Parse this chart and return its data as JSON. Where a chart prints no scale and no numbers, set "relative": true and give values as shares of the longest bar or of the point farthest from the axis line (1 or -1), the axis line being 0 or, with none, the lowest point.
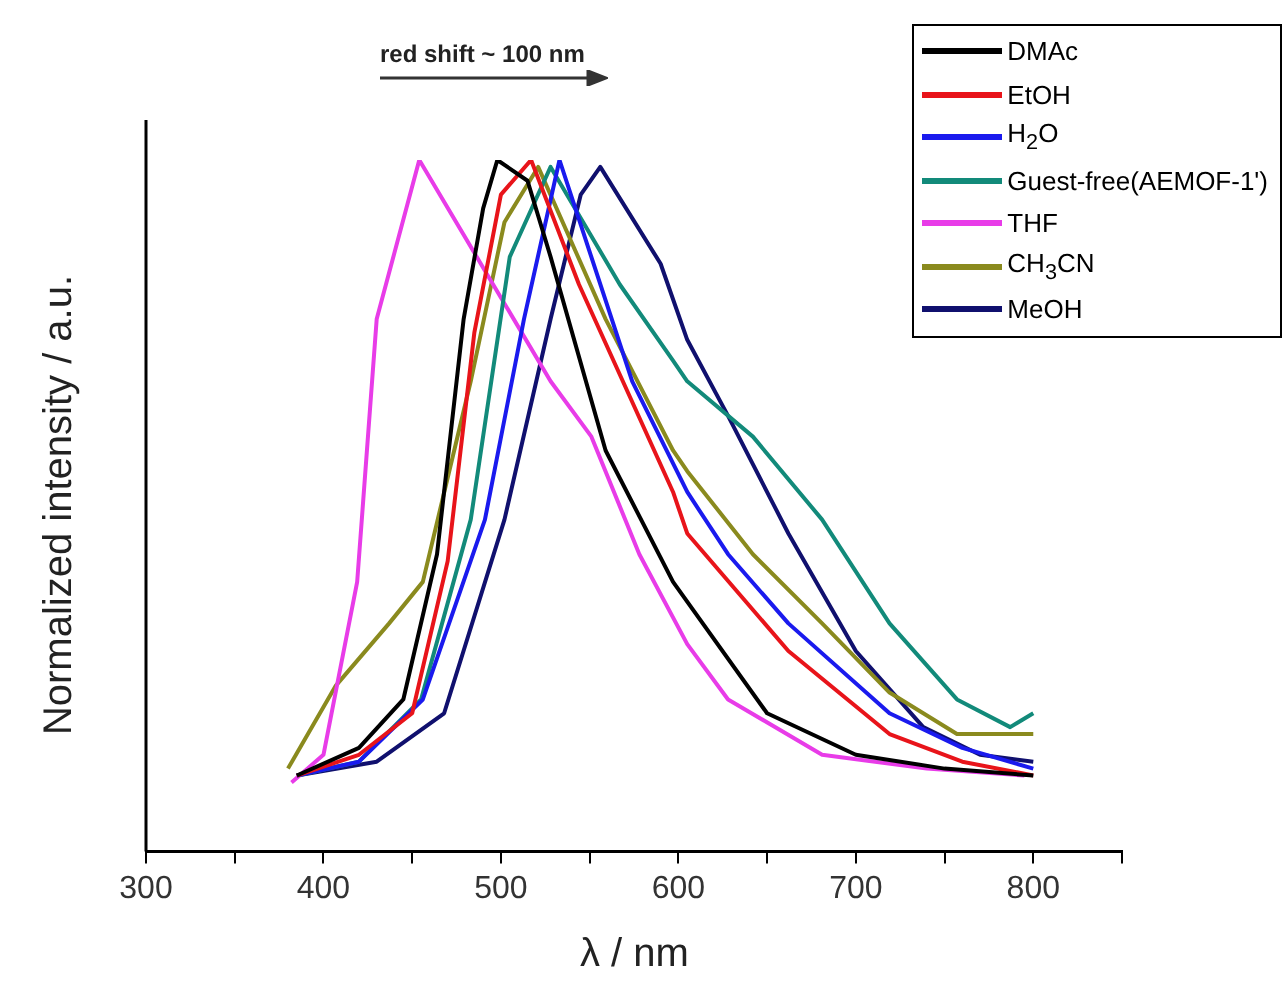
{
  "chart_data": {
    "type": "line",
    "xlabel": "λ / nm",
    "ylabel": "Normalized intensity / a.u.",
    "relative": true,
    "xlim": [
      300,
      850
    ],
    "xticks": [
      300,
      {
        "value": 350,
        "label": null
      },
      400,
      {
        "value": 450,
        "label": null
      },
      500,
      {
        "value": 550,
        "label": null
      },
      600,
      {
        "value": 650,
        "label": null
      },
      700,
      {
        "value": 750,
        "label": null
      },
      800,
      {
        "value": 850,
        "label": null
      }
    ],
    "grid": false,
    "legend": "top right",
    "marker": "none",
    "line_style": "solid",
    "annotations": [
      "red shift ~ 100 nm"
    ],
    "series": [
      {
        "name": "DMAc",
        "color": "#000000",
        "x": [
          385,
          420,
          445,
          464,
          479,
          490,
          498,
          515,
          528,
          559,
          597,
          650,
          700,
          750,
          800
        ],
        "values": [
          0.11,
          0.15,
          0.22,
          0.43,
          0.77,
          0.93,
          1.0,
          0.97,
          0.86,
          0.58,
          0.39,
          0.2,
          0.14,
          0.12,
          0.11
        ]
      },
      {
        "name": "EtOH",
        "color": "#e8141a",
        "x": [
          385,
          420,
          450,
          470,
          485,
          500,
          517,
          544,
          597,
          605,
          662,
          719,
          760,
          800
        ],
        "values": [
          0.11,
          0.14,
          0.2,
          0.42,
          0.75,
          0.95,
          1.0,
          0.82,
          0.52,
          0.46,
          0.29,
          0.17,
          0.13,
          0.11
        ]
      },
      {
        "name": "H$_{2}$O",
        "color": "#1a1aee",
        "x": [
          385,
          420,
          456,
          491,
          513,
          533,
          574,
          605,
          628,
          662,
          719,
          760,
          800
        ],
        "values": [
          0.11,
          0.13,
          0.22,
          0.48,
          0.77,
          1.0,
          0.68,
          0.52,
          0.43,
          0.33,
          0.2,
          0.15,
          0.12
        ]
      },
      {
        "name": "Guest-free(AEMOF-1')",
        "color": "#128a7a",
        "x": [
          385,
          420,
          455,
          483,
          505,
          528,
          567,
          597,
          605,
          642,
          681,
          719,
          757,
          787,
          800
        ],
        "values": [
          0.11,
          0.13,
          0.22,
          0.48,
          0.86,
          0.99,
          0.82,
          0.71,
          0.68,
          0.6,
          0.48,
          0.33,
          0.22,
          0.18,
          0.2
        ]
      },
      {
        "name": "THF",
        "color": "#e83ce8",
        "x": [
          382,
          400,
          419,
          430,
          454,
          491,
          528,
          551,
          578,
          605,
          628,
          681,
          740,
          795
        ],
        "values": [
          0.1,
          0.14,
          0.39,
          0.77,
          1.0,
          0.84,
          0.68,
          0.6,
          0.43,
          0.3,
          0.22,
          0.14,
          0.12,
          0.11
        ]
      },
      {
        "name": "CH$_{3}$CN",
        "color": "#8a8a1e",
        "x": [
          380,
          407,
          437,
          456,
          483,
          502,
          521,
          559,
          597,
          605,
          642,
          681,
          719,
          757,
          800
        ],
        "values": [
          0.12,
          0.24,
          0.33,
          0.39,
          0.68,
          0.91,
          0.99,
          0.77,
          0.58,
          0.55,
          0.43,
          0.33,
          0.23,
          0.17,
          0.17
        ]
      },
      {
        "name": "MeOH",
        "color": "#10106e",
        "x": [
          385,
          430,
          468,
          502,
          528,
          545,
          556,
          590,
          605,
          628,
          662,
          700,
          738,
          770,
          800
        ],
        "values": [
          0.11,
          0.13,
          0.2,
          0.48,
          0.77,
          0.95,
          0.99,
          0.85,
          0.74,
          0.63,
          0.46,
          0.29,
          0.18,
          0.14,
          0.13
        ]
      }
    ]
  }
}
